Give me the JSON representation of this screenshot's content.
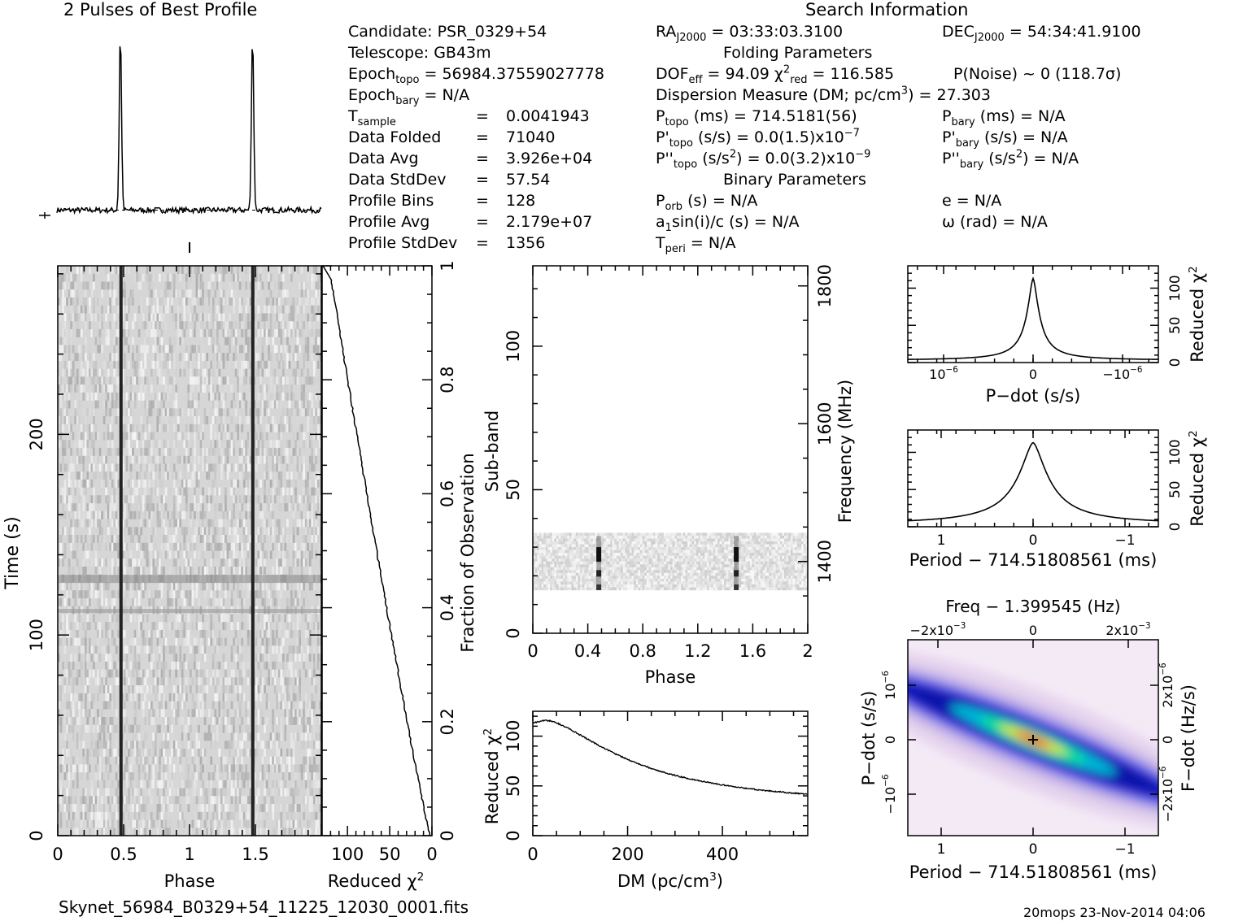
{
  "header": {
    "profile_title": "2 Pulses of Best Profile",
    "search_title": "Search Information",
    "filename": "Skynet_56984_B0329+54_11225_12030_0001.fits",
    "footer_stamp": "20mops 23-Nov-2014 04:06"
  },
  "info": {
    "candidate": "Candidate:  PSR_0329+54",
    "telescope": "Telescope:  GB43m",
    "epoch_topo": "= 56984.37559027778",
    "epoch_bary": "= N/A",
    "rows": [
      {
        "label": "Data Folded",
        "value": "71040"
      },
      {
        "label": "Data Avg",
        "value": "3.926e+04"
      },
      {
        "label": "Data StdDev",
        "value": "57.54"
      },
      {
        "label": "Profile Bins",
        "value": "128"
      },
      {
        "label": "Profile Avg",
        "value": "2.179e+07"
      },
      {
        "label": "Profile StdDev",
        "value": "1356"
      }
    ],
    "t_sample_value": "0.0041943",
    "ra": "= 03:33:03.3100",
    "dec": "= 54:34:41.9100",
    "folding_params": "Folding Parameters",
    "dof": "= 94.09",
    "chi2_red": "= 116.585",
    "pnoise": "P(Noise) ~ 0    (118.7σ)",
    "dm_line": "Dispersion Measure (DM; pc/cm",
    "dm_value": ") = 27.303",
    "p_topo": "(ms) =  714.5181(56)",
    "pd_topo": "(s/s) = 0.0(1.5)x10",
    "pd_topo_exp": "−7",
    "pdd_topo": "(s/s",
    "pdd_topo_val": ") = 0.0(3.2)x10",
    "pdd_topo_exp": "−9",
    "p_bary": "(ms) = N/A",
    "pd_bary": "(s/s) = N/A",
    "pdd_bary": ") = N/A",
    "binary_params": "Binary Parameters",
    "p_orb": "(s) = N/A",
    "a1sini": "sin(i)/c (s) = N/A",
    "t_peri": "= N/A",
    "ecc": "e = N/A",
    "omega": "ω (rad) = N/A"
  },
  "chart_data": [
    {
      "id": "profile",
      "type": "line",
      "title": "2 Pulses of Best Profile",
      "x_range": [
        0,
        2
      ],
      "peaks_phase": [
        0.48,
        1.48
      ],
      "baseline_level": 0.05,
      "peak_level": 1.0
    },
    {
      "id": "time-phase",
      "type": "heatmap",
      "xlabel": "Phase",
      "ylabel": "Time (s)",
      "x_ticks": [
        "0",
        "0.5",
        "1",
        "1.5"
      ],
      "y_ticks": [
        "0",
        "100",
        "200"
      ],
      "x_range": [
        0,
        2
      ],
      "y_range": [
        0,
        284
      ],
      "pulse_phases": [
        0.48,
        1.48
      ]
    },
    {
      "id": "chi-vs-fraction",
      "type": "line",
      "xlabel": "Reduced χ",
      "ylabel": "Fraction of Observation",
      "x_ticks": [
        "100",
        "50",
        "0"
      ],
      "y_ticks": [
        "0.2",
        "0.4",
        "0.6",
        "0.8",
        "1"
      ],
      "x_range": [
        130,
        0
      ],
      "y_range": [
        0,
        1
      ]
    },
    {
      "id": "subband-phase",
      "type": "heatmap",
      "xlabel": "Phase",
      "ylabel": "Sub-band",
      "y2label": "Frequency (MHz)",
      "x_ticks": [
        "0",
        "0.4",
        "0.8",
        "1.2",
        "1.6",
        "2"
      ],
      "y_ticks": [
        "0",
        "50",
        "100"
      ],
      "y2_ticks": [
        "1400",
        "1600",
        "1800"
      ],
      "x_range": [
        0,
        2
      ],
      "y_range": [
        0,
        128
      ],
      "filled_subbands": [
        15,
        35
      ],
      "pulse_phases": [
        0.48,
        1.48
      ]
    },
    {
      "id": "dm-chi",
      "type": "line",
      "xlabel": "DM (pc/cm",
      "ylabel": "Reduced χ",
      "x_ticks": [
        "0",
        "200",
        "400"
      ],
      "y_ticks": [
        "0",
        "50",
        "100"
      ],
      "x_range": [
        0,
        580
      ],
      "y_range": [
        0,
        125
      ]
    },
    {
      "id": "pdot-chi",
      "type": "line",
      "xlabel": "P−dot (s/s)",
      "ylabel": "Reduced χ",
      "x_ticks": [
        "10",
        "0",
        "−10"
      ],
      "y_ticks": [
        "0",
        "50",
        "100"
      ],
      "y_range": [
        0,
        130
      ]
    },
    {
      "id": "period-chi",
      "type": "line",
      "xlabel": "Period − 714.51808561 (ms)",
      "ylabel": "Reduced χ",
      "x_ticks": [
        "1",
        "0",
        "−1"
      ],
      "y_ticks": [
        "0",
        "50",
        "100"
      ],
      "x_range": [
        1.3,
        -1.3
      ],
      "y_range": [
        0,
        130
      ]
    },
    {
      "id": "p-pdot-plane",
      "type": "heatmap",
      "title": "Freq − 1.399545 (Hz)",
      "xlabel": "Period − 714.51808561 (ms)",
      "ylabel": "P−dot (s/s)",
      "y2label": "F−dot (Hz/s)",
      "x_ticks": [
        "1",
        "0",
        "−1"
      ],
      "top_ticks": [
        "−2x10",
        "0",
        "2x10"
      ],
      "top_tick_exp": "−3",
      "left_ticks": [
        "10",
        "0",
        "−10"
      ],
      "left_tick_exp": "−6",
      "right_ticks": [
        "−2x10",
        "0",
        "2x10"
      ],
      "right_tick_exp": "−6"
    }
  ]
}
